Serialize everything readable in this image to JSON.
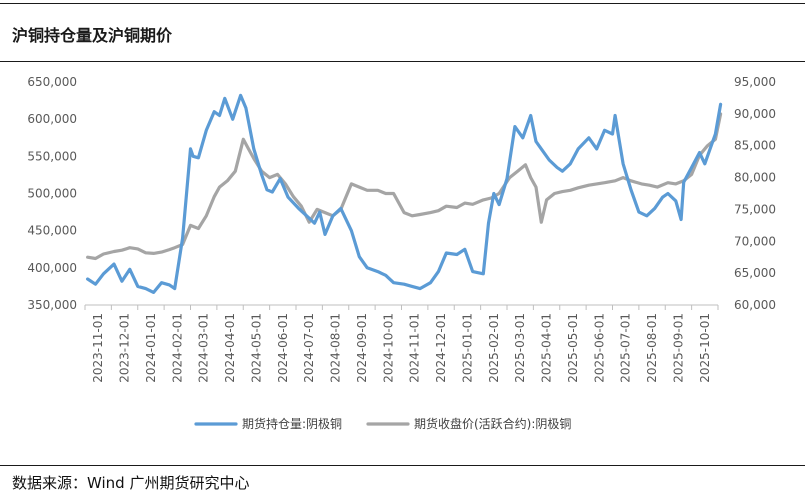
{
  "page": {
    "title": "沪铜持仓量及沪铜期价",
    "source": "数据来源：Wind  广州期货研究中心"
  },
  "chart_data": {
    "type": "line",
    "title": "沪铜持仓量及沪铜期价",
    "xlabel": "",
    "ylabel_left": "",
    "ylabel_right": "",
    "ylim_left": [
      350000,
      650000
    ],
    "ylim_right": [
      60000,
      95000
    ],
    "y_ticks_left": [
      "350,000",
      "400,000",
      "450,000",
      "500,000",
      "550,000",
      "600,000",
      "650,000"
    ],
    "y_ticks_right": [
      "60,000",
      "65,000",
      "70,000",
      "75,000",
      "80,000",
      "85,000",
      "90,000",
      "95,000"
    ],
    "x_ticks": [
      "2023-11-01",
      "2023-12-01",
      "2024-01-01",
      "2024-02-01",
      "2024-03-01",
      "2024-04-01",
      "2024-05-01",
      "2024-06-01",
      "2024-07-01",
      "2024-08-01",
      "2024-09-01",
      "2024-10-01",
      "2024-11-01",
      "2024-12-01",
      "2025-01-01",
      "2025-02-01",
      "2025-03-01",
      "2025-04-01",
      "2025-05-01",
      "2025-06-01",
      "2025-07-01",
      "2025-08-01",
      "2025-09-01",
      "2025-10-01"
    ],
    "grid": false,
    "legend_position": "bottom",
    "series": [
      {
        "name": "期货持仓量:阴极铜",
        "axis": "left",
        "color": "#5b9bd5",
        "x": [
          0,
          0.3,
          0.6,
          1.0,
          1.3,
          1.6,
          1.9,
          2.2,
          2.5,
          2.8,
          3.1,
          3.3,
          3.6,
          3.9,
          4.0,
          4.2,
          4.5,
          4.8,
          5.0,
          5.2,
          5.5,
          5.8,
          6.0,
          6.3,
          6.6,
          6.8,
          7.0,
          7.3,
          7.6,
          8.0,
          8.3,
          8.6,
          8.8,
          9.0,
          9.3,
          9.6,
          10.0,
          10.3,
          10.6,
          11.0,
          11.3,
          11.6,
          12.0,
          12.3,
          12.6,
          13.0,
          13.3,
          13.6,
          14.0,
          14.3,
          14.6,
          15.0,
          15.2,
          15.4,
          15.6,
          15.9,
          16.2,
          16.5,
          16.8,
          17.0,
          17.2,
          17.5,
          17.8,
          18.0,
          18.3,
          18.6,
          19.0,
          19.3,
          19.6,
          19.9,
          20.0,
          20.3,
          20.6,
          20.9,
          21.2,
          21.5,
          21.8,
          22.0,
          22.3,
          22.5,
          22.6,
          22.9,
          23.2,
          23.4,
          23.6,
          23.8,
          24.0
        ],
        "values": [
          385000,
          378000,
          392000,
          405000,
          382000,
          398000,
          375000,
          372000,
          367000,
          380000,
          377000,
          372000,
          440000,
          560000,
          550000,
          548000,
          585000,
          610000,
          605000,
          628000,
          600000,
          632000,
          615000,
          560000,
          525000,
          505000,
          502000,
          520000,
          495000,
          480000,
          470000,
          460000,
          475000,
          445000,
          470000,
          480000,
          450000,
          415000,
          400000,
          395000,
          390000,
          380000,
          378000,
          375000,
          372000,
          380000,
          395000,
          420000,
          418000,
          425000,
          395000,
          392000,
          460000,
          500000,
          485000,
          520000,
          590000,
          575000,
          605000,
          570000,
          560000,
          545000,
          535000,
          530000,
          540000,
          560000,
          575000,
          560000,
          585000,
          580000,
          605000,
          540000,
          505000,
          475000,
          470000,
          480000,
          495000,
          500000,
          490000,
          465000,
          515000,
          535000,
          555000,
          540000,
          560000,
          580000,
          620000
        ]
      },
      {
        "name": "期货收盘价(活跃合约):阴极铜",
        "axis": "right",
        "color": "#a5a5a5",
        "x": [
          0,
          0.3,
          0.6,
          1.0,
          1.3,
          1.6,
          1.9,
          2.2,
          2.5,
          2.8,
          3.1,
          3.3,
          3.6,
          3.9,
          4.2,
          4.5,
          4.8,
          5.0,
          5.3,
          5.6,
          5.9,
          6.1,
          6.3,
          6.6,
          6.9,
          7.2,
          7.5,
          7.8,
          8.1,
          8.4,
          8.7,
          9.0,
          9.3,
          9.6,
          10.0,
          10.3,
          10.6,
          11.0,
          11.3,
          11.6,
          12.0,
          12.3,
          12.6,
          13.0,
          13.3,
          13.6,
          14.0,
          14.3,
          14.6,
          15.0,
          15.3,
          15.6,
          16.0,
          16.3,
          16.6,
          16.8,
          17.0,
          17.2,
          17.4,
          17.7,
          18.0,
          18.3,
          18.6,
          19.0,
          19.3,
          19.6,
          20.0,
          20.3,
          20.6,
          21.0,
          21.3,
          21.6,
          22.0,
          22.3,
          22.6,
          22.9,
          23.2,
          23.5,
          23.8,
          24.0
        ],
        "values": [
          67500,
          67300,
          68000,
          68400,
          68600,
          69000,
          68800,
          68200,
          68100,
          68300,
          68700,
          69000,
          69500,
          72500,
          72000,
          74000,
          77000,
          78500,
          79500,
          81000,
          86000,
          84500,
          83000,
          81000,
          80000,
          80500,
          79000,
          77000,
          75500,
          73000,
          75000,
          74500,
          74000,
          75000,
          79000,
          78500,
          78000,
          78000,
          77500,
          77500,
          74500,
          74000,
          74200,
          74500,
          74800,
          75500,
          75300,
          76000,
          75800,
          76500,
          76800,
          77500,
          80000,
          81000,
          82000,
          80000,
          78500,
          73000,
          76500,
          77500,
          77800,
          78000,
          78400,
          78800,
          79000,
          79200,
          79500,
          80000,
          79500,
          79000,
          78800,
          78500,
          79200,
          79000,
          79500,
          80500,
          83500,
          85000,
          86000,
          90000
        ]
      }
    ]
  }
}
